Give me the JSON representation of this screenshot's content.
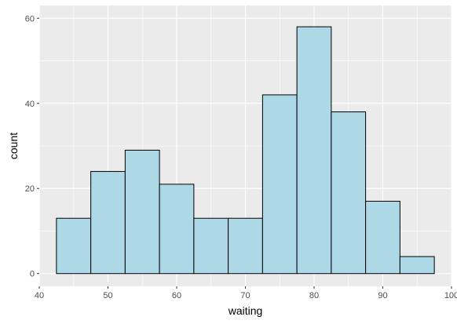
{
  "chart_data": {
    "type": "bar",
    "subtype": "histogram",
    "title": "",
    "xlabel": "waiting",
    "ylabel": "count",
    "xlim": [
      40,
      100
    ],
    "ylim": [
      0,
      60
    ],
    "x_ticks": [
      "40",
      "50",
      "60",
      "70",
      "80",
      "90",
      "100"
    ],
    "y_ticks": [
      "0",
      "20",
      "40",
      "60"
    ],
    "bins": [
      {
        "start": 42.5,
        "end": 47.5,
        "count": 13
      },
      {
        "start": 47.5,
        "end": 52.5,
        "count": 24
      },
      {
        "start": 52.5,
        "end": 57.5,
        "count": 29
      },
      {
        "start": 57.5,
        "end": 62.5,
        "count": 21
      },
      {
        "start": 62.5,
        "end": 67.5,
        "count": 13
      },
      {
        "start": 67.5,
        "end": 72.5,
        "count": 13
      },
      {
        "start": 72.5,
        "end": 77.5,
        "count": 42
      },
      {
        "start": 77.5,
        "end": 82.5,
        "count": 58
      },
      {
        "start": 82.5,
        "end": 87.5,
        "count": 38
      },
      {
        "start": 87.5,
        "end": 92.5,
        "count": 17
      },
      {
        "start": 92.5,
        "end": 97.5,
        "count": 4
      }
    ],
    "grid": true,
    "colors": {
      "bar_fill": "#add8e6",
      "bar_stroke": "#000000",
      "panel_background": "#ebebeb",
      "grid_line": "#ffffff"
    }
  }
}
